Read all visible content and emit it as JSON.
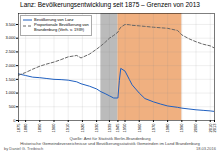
{
  "chart_data": {
    "type": "line",
    "title": "Lanz: Bevölkerungsentwicklung seit 1875 – Grenzen von 2013",
    "x": [
      1875,
      1880,
      1885,
      1890,
      1895,
      1900,
      1905,
      1910,
      1916,
      1919,
      1925,
      1930,
      1933,
      1936,
      1939,
      1942,
      1945,
      1946,
      1947,
      1950,
      1953,
      1955,
      1960,
      1964,
      1970,
      1975,
      1980,
      1987,
      1990,
      1995,
      2000,
      2005,
      2010,
      2013
    ],
    "series": [
      {
        "name": "Bevölkerung von Lanz",
        "color": "#2060c0",
        "line_style": "solid",
        "values": [
          1700,
          1640,
          1580,
          1560,
          1530,
          1500,
          1490,
          1470,
          1410,
          1340,
          1250,
          1150,
          1050,
          980,
          900,
          820,
          820,
          1450,
          1900,
          1800,
          1500,
          1300,
          1000,
          800,
          680,
          600,
          530,
          480,
          450,
          420,
          390,
          370,
          350,
          330
        ]
      },
      {
        "name": "Proportionale Bevölkerung von\nBrandenburg (Verh. v. 1939)",
        "color": "#666666",
        "line_style": "dashed",
        "values": [
          1650,
          1750,
          1870,
          1980,
          2060,
          2130,
          2220,
          2320,
          2370,
          2280,
          2420,
          2600,
          2720,
          2850,
          3000,
          3100,
          3220,
          3320,
          3400,
          3500,
          3490,
          3470,
          3450,
          3430,
          3400,
          3380,
          3360,
          3280,
          3120,
          2980,
          2870,
          2780,
          2720,
          2640
        ]
      }
    ],
    "xlim": [
      1875,
      2013
    ],
    "xticks": [
      1875,
      1880,
      1890,
      1900,
      1910,
      1920,
      1930,
      1939,
      1945,
      1950,
      1960,
      1970,
      1980,
      1990,
      2000,
      2010,
      2013
    ],
    "ylim": [
      0,
      3900
    ],
    "yticks": [
      0,
      500,
      {
        "value": 1000,
        "label": "1.000"
      },
      {
        "value": 1500,
        "label": "1.500"
      },
      {
        "value": 2000,
        "label": "2.000"
      },
      {
        "value": 2500,
        "label": "2.500"
      },
      {
        "value": 3000,
        "label": "3.000"
      },
      {
        "value": 3500,
        "label": "3.500"
      }
    ],
    "grid": true,
    "legend": "upper left",
    "spans": [
      {
        "start": 1933,
        "end": 1945,
        "color": "#bbbbbb"
      },
      {
        "start": 1945,
        "end": 1990,
        "color": "#f0b080"
      }
    ],
    "source": "Quelle: Amt für Statistik Berlin-Brandenburg\nHistorische Gemeindeverzeichnisse und Bevölkerungsstatistik Gemeinden im Land Brandenburg",
    "footer_left": "by Daniel G. Treibisch",
    "footer_right": "18.03.2016"
  }
}
